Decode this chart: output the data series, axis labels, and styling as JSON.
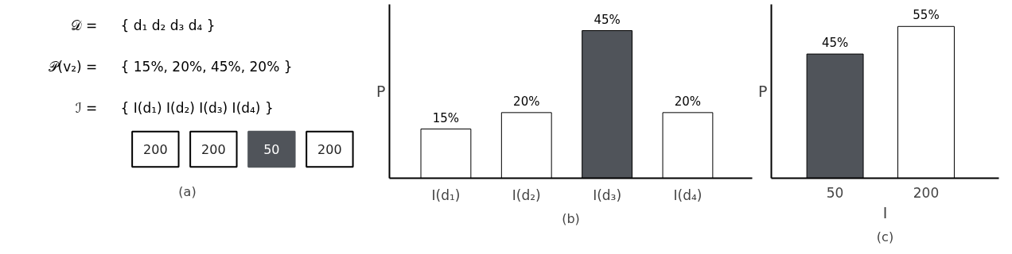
{
  "chart_data": [
    {
      "type": "other",
      "title": "(a)",
      "annotations": [
        "𝒟 =",
        "{ d₁    d₂    d₃    d₄ }",
        "𝒫(v₂) =",
        "{ 15%,  20%,  45%,  20% }",
        "ℐ =",
        "{ I(d₁)  I(d₂)  I(d₃)  I(d₄) }"
      ],
      "categories": [
        null,
        null,
        null,
        null
      ],
      "values": [
        200,
        200,
        50,
        200
      ],
      "colors": [
        "#ffffff",
        "#ffffff",
        "#50545a",
        "#ffffff"
      ],
      "data_labels": true
    },
    {
      "type": "bar",
      "title": "(b)",
      "ylabel": "P",
      "categories": [
        "I(d₁)",
        "I(d₂)",
        "I(d₃)",
        "I(d₄)"
      ],
      "values": [
        15,
        20,
        45,
        20
      ],
      "colors": [
        "#ffffff",
        "#ffffff",
        "#50545a",
        "#ffffff"
      ],
      "value_labels": [
        "15%",
        "20%",
        "45%",
        "20%"
      ],
      "ylim": [
        0,
        53
      ],
      "tick_labels": "x",
      "grid": false
    },
    {
      "type": "bar",
      "title": "(c)",
      "ylabel": "P",
      "xlabel": "I",
      "categories": [
        "50",
        "200"
      ],
      "values": [
        45,
        55
      ],
      "colors": [
        "#50545a",
        "#ffffff"
      ],
      "value_labels": [
        "45%",
        "55%"
      ],
      "ylim": [
        0,
        63
      ],
      "tick_labels": "x",
      "grid": false
    }
  ]
}
